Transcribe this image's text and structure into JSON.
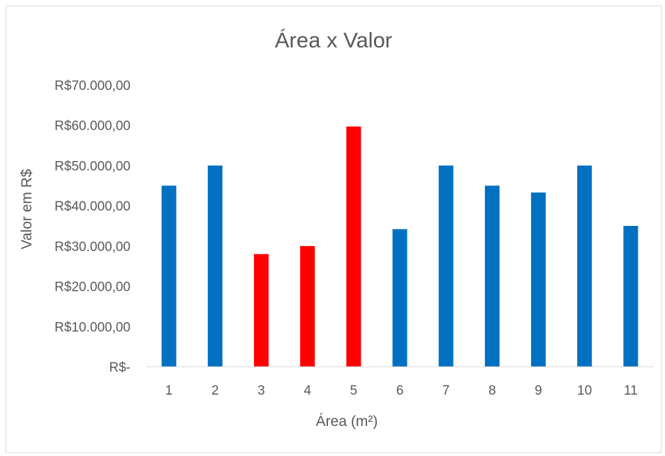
{
  "chart_data": {
    "type": "bar",
    "title": "Área x Valor",
    "xlabel": "Área (m²)",
    "ylabel": "Valor em R$",
    "categories": [
      "1",
      "2",
      "3",
      "4",
      "5",
      "6",
      "7",
      "8",
      "9",
      "10",
      "11"
    ],
    "values": [
      45000,
      50000,
      28000,
      30000,
      59700,
      34200,
      50000,
      45000,
      43300,
      50000,
      35000
    ],
    "bar_colors": [
      "#0070c0",
      "#0070c0",
      "#ff0000",
      "#ff0000",
      "#ff0000",
      "#0070c0",
      "#0070c0",
      "#0070c0",
      "#0070c0",
      "#0070c0",
      "#0070c0"
    ],
    "ylim": [
      0,
      70000
    ],
    "y_ticks": [
      0,
      10000,
      20000,
      30000,
      40000,
      50000,
      60000,
      70000
    ],
    "y_tick_labels": [
      "R$-",
      "R$10.000,00",
      "R$20.000,00",
      "R$30.000,00",
      "R$40.000,00",
      "R$50.000,00",
      "R$60.000,00",
      "R$70.000,00"
    ],
    "grid": false,
    "legend": "none"
  }
}
